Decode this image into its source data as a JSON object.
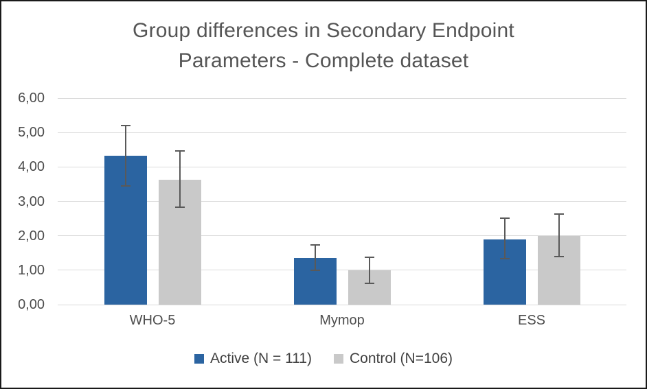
{
  "title": {
    "line1": "Group differences in Secondary Endpoint",
    "line2": "Parameters - Complete dataset"
  },
  "chart_data": {
    "type": "bar",
    "title": "Group differences in Secondary Endpoint Parameters - Complete dataset",
    "categories": [
      "WHO-5",
      "Mymop",
      "ESS"
    ],
    "series": [
      {
        "name": "Active (N = 111)",
        "color": "#2b64a1",
        "values": [
          4.33,
          1.36,
          1.9
        ],
        "error_upper": [
          5.2,
          1.74,
          2.52
        ],
        "error_lower": [
          3.45,
          1.0,
          1.33
        ]
      },
      {
        "name": "Control (N=106)",
        "color": "#c9c9c9",
        "values": [
          3.63,
          1.0,
          2.0
        ],
        "error_upper": [
          4.46,
          1.38,
          2.64
        ],
        "error_lower": [
          2.83,
          0.62,
          1.4
        ]
      }
    ],
    "xlabel": "",
    "ylabel": "",
    "ylim": [
      0,
      6
    ],
    "ytick_step": 1,
    "ytick_labels": [
      "0,00",
      "1,00",
      "2,00",
      "3,00",
      "4,00",
      "5,00",
      "6,00"
    ],
    "grid": true,
    "legend_position": "bottom",
    "colors": {
      "gridline": "#d9d9d9",
      "error_bar": "#595959",
      "axis_text": "#4d4d4d",
      "title_text": "#555555",
      "frame_border": "#1a1a1a",
      "background": "#ffffff"
    }
  }
}
